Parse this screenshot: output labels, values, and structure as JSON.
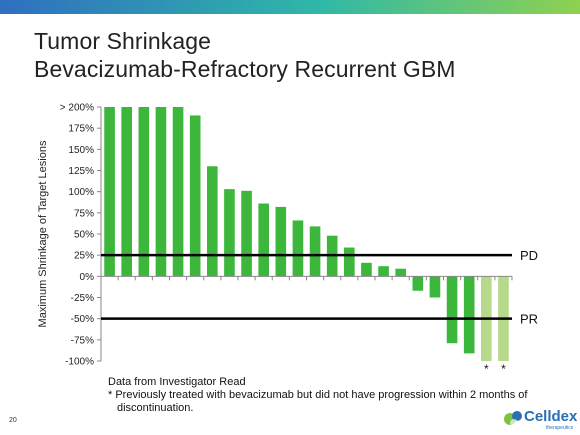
{
  "slide": {
    "title_line1": "Tumor Shrinkage",
    "title_line2": "Bevacizumab-Refractory Recurrent GBM",
    "footnote_line1": "Data from Investigator Read",
    "footnote_line2": "* Previously treated with bevacizumab but did not have progression within 2 months of",
    "footnote_line3": "discontinuation.",
    "page_number": "20",
    "logo_name": "Celldex",
    "logo_tagline": "therapeutics",
    "colors": {
      "topbar_start": "#2f6fc0",
      "topbar_mid": "#2fb8a8",
      "topbar_end": "#8fd150",
      "bar": "#3cb73c",
      "bar_star": "#b7d98b",
      "logo_blue": "#2a6fb3",
      "logo_green": "#7cc242"
    }
  },
  "chart_data": {
    "type": "bar",
    "ylabel": "Maximum Shrinkage of Target Lesions",
    "ylim": [
      -100,
      200
    ],
    "yticks": [
      "> 200%",
      "175%",
      "150%",
      "125%",
      "100%",
      "75%",
      "50%",
      "25%",
      "0%",
      "-25%",
      "-50%",
      "-75%",
      "-100%"
    ],
    "ytick_values": [
      200,
      175,
      150,
      125,
      100,
      75,
      50,
      25,
      0,
      -25,
      -50,
      -75,
      -100
    ],
    "values": [
      200,
      200,
      200,
      200,
      200,
      190,
      130,
      103,
      101,
      86,
      82,
      66,
      59,
      48,
      34,
      16,
      12,
      9,
      -17,
      -25,
      -79,
      -91,
      -100,
      -100
    ],
    "star_flags": [
      false,
      false,
      false,
      false,
      false,
      false,
      false,
      false,
      false,
      false,
      false,
      false,
      false,
      false,
      false,
      false,
      false,
      false,
      false,
      false,
      false,
      false,
      true,
      true
    ],
    "star_marker": "*",
    "reference_lines": [
      {
        "label": "PD",
        "value": 25
      },
      {
        "label": "PR",
        "value": -50
      }
    ],
    "grid": false,
    "legend": "none"
  }
}
